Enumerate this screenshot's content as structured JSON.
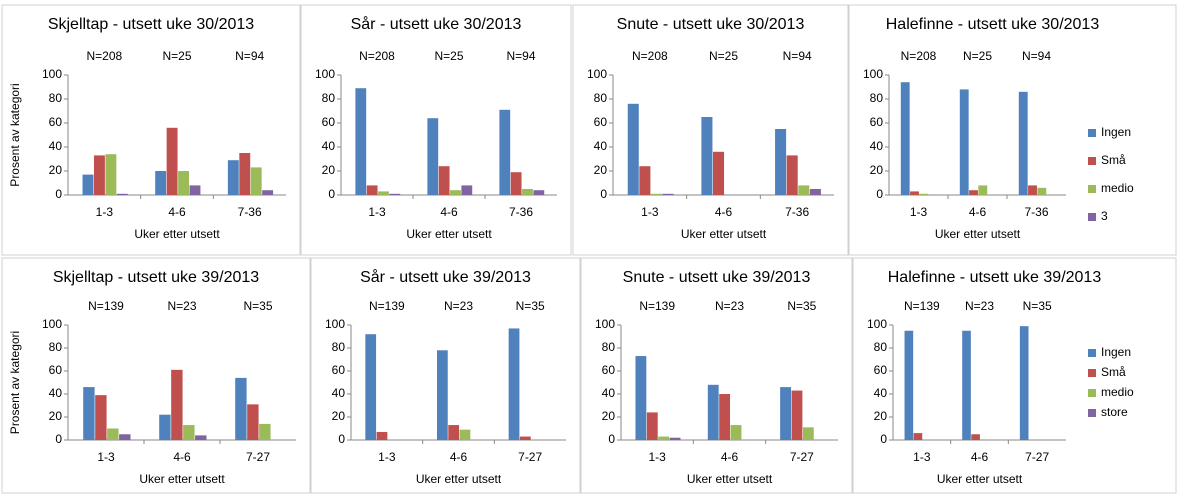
{
  "chart_data": [
    {
      "type": "bar",
      "title": "Skjelltap - utsett uke 30/2013",
      "y_label": "Prosent av kategori",
      "x_label": "Uker etter utsett",
      "annotations": [
        "N=208",
        "N=25",
        "N=94"
      ],
      "categories": [
        "1-3",
        "4-6",
        "7-36"
      ],
      "ylim": [
        0,
        100
      ],
      "yticks": [
        0,
        20,
        40,
        60,
        80,
        100
      ],
      "legend": false,
      "series": [
        {
          "name": "Ingen",
          "color": "#4f81bd",
          "values": [
            17,
            20,
            29
          ]
        },
        {
          "name": "Små",
          "color": "#c0504d",
          "values": [
            33,
            56,
            35
          ]
        },
        {
          "name": "medio",
          "color": "#9bbb59",
          "values": [
            34,
            20,
            23
          ]
        },
        {
          "name": "3",
          "color": "#8064a2",
          "values": [
            1,
            8,
            4
          ]
        }
      ]
    },
    {
      "type": "bar",
      "title": "Sår - utsett uke 30/2013",
      "x_label": "Uker etter utsett",
      "annotations": [
        "N=208",
        "N=25",
        "N=94"
      ],
      "categories": [
        "1-3",
        "4-6",
        "7-36"
      ],
      "ylim": [
        0,
        100
      ],
      "yticks": [
        0,
        20,
        40,
        60,
        80,
        100
      ],
      "legend": false,
      "series": [
        {
          "name": "Ingen",
          "color": "#4f81bd",
          "values": [
            89,
            64,
            71
          ]
        },
        {
          "name": "Små",
          "color": "#c0504d",
          "values": [
            8,
            24,
            19
          ]
        },
        {
          "name": "medio",
          "color": "#9bbb59",
          "values": [
            3,
            4,
            5
          ]
        },
        {
          "name": "3",
          "color": "#8064a2",
          "values": [
            1,
            8,
            4
          ]
        }
      ]
    },
    {
      "type": "bar",
      "title": "Snute - utsett uke 30/2013",
      "x_label": "Uker etter utsett",
      "annotations": [
        "N=208",
        "N=25",
        "N=94"
      ],
      "categories": [
        "1-3",
        "4-6",
        "7-36"
      ],
      "ylim": [
        0,
        100
      ],
      "yticks": [
        0,
        20,
        40,
        60,
        80,
        100
      ],
      "legend": false,
      "series": [
        {
          "name": "Ingen",
          "color": "#4f81bd",
          "values": [
            76,
            65,
            55
          ]
        },
        {
          "name": "Små",
          "color": "#c0504d",
          "values": [
            24,
            36,
            33
          ]
        },
        {
          "name": "medio",
          "color": "#9bbb59",
          "values": [
            1,
            0,
            8
          ]
        },
        {
          "name": "3",
          "color": "#8064a2",
          "values": [
            1,
            0,
            5
          ]
        }
      ]
    },
    {
      "type": "bar",
      "title": "Halefinne - utsett uke 30/2013",
      "x_label": "Uker etter utsett",
      "annotations": [
        "N=208",
        "N=25",
        "N=94"
      ],
      "categories": [
        "1-3",
        "4-6",
        "7-36"
      ],
      "ylim": [
        0,
        100
      ],
      "yticks": [
        0,
        20,
        40,
        60,
        80,
        100
      ],
      "legend": true,
      "series": [
        {
          "name": "Ingen",
          "color": "#4f81bd",
          "values": [
            94,
            88,
            86
          ]
        },
        {
          "name": "Små",
          "color": "#c0504d",
          "values": [
            3,
            4,
            8
          ]
        },
        {
          "name": "medio",
          "color": "#9bbb59",
          "values": [
            1,
            8,
            6
          ]
        },
        {
          "name": "3",
          "color": "#8064a2",
          "values": [
            0,
            0,
            0
          ]
        }
      ]
    },
    {
      "type": "bar",
      "title": "Skjelltap - utsett uke 39/2013",
      "y_label": "Prosent av kategori",
      "x_label": "Uker etter utsett",
      "annotations": [
        "N=139",
        "N=23",
        "N=35"
      ],
      "categories": [
        "1-3",
        "4-6",
        "7-27"
      ],
      "ylim": [
        0,
        100
      ],
      "yticks": [
        0,
        20,
        40,
        60,
        80,
        100
      ],
      "legend": false,
      "series": [
        {
          "name": "Ingen",
          "color": "#4f81bd",
          "values": [
            46,
            22,
            54
          ]
        },
        {
          "name": "Små",
          "color": "#c0504d",
          "values": [
            39,
            61,
            31
          ]
        },
        {
          "name": "medio",
          "color": "#9bbb59",
          "values": [
            10,
            13,
            14
          ]
        },
        {
          "name": "store",
          "color": "#8064a2",
          "values": [
            5,
            4,
            0
          ]
        }
      ]
    },
    {
      "type": "bar",
      "title": "Sår - utsett uke 39/2013",
      "x_label": "Uker etter utsett",
      "annotations": [
        "N=139",
        "N=23",
        "N=35"
      ],
      "categories": [
        "1-3",
        "4-6",
        "7-27"
      ],
      "ylim": [
        0,
        100
      ],
      "yticks": [
        0,
        20,
        40,
        60,
        80,
        100
      ],
      "legend": false,
      "series": [
        {
          "name": "Ingen",
          "color": "#4f81bd",
          "values": [
            92,
            78,
            97
          ]
        },
        {
          "name": "Små",
          "color": "#c0504d",
          "values": [
            7,
            13,
            3
          ]
        },
        {
          "name": "medio",
          "color": "#9bbb59",
          "values": [
            0,
            9,
            0
          ]
        },
        {
          "name": "store",
          "color": "#8064a2",
          "values": [
            0,
            0,
            0
          ]
        }
      ]
    },
    {
      "type": "bar",
      "title": "Snute - utsett uke 39/2013",
      "x_label": "Uker etter utsett",
      "annotations": [
        "N=139",
        "N=23",
        "N=35"
      ],
      "categories": [
        "1-3",
        "4-6",
        "7-27"
      ],
      "ylim": [
        0,
        100
      ],
      "yticks": [
        0,
        20,
        40,
        60,
        80,
        100
      ],
      "legend": false,
      "series": [
        {
          "name": "Ingen",
          "color": "#4f81bd",
          "values": [
            73,
            48,
            46
          ]
        },
        {
          "name": "Små",
          "color": "#c0504d",
          "values": [
            24,
            40,
            43
          ]
        },
        {
          "name": "medio",
          "color": "#9bbb59",
          "values": [
            3,
            13,
            11
          ]
        },
        {
          "name": "store",
          "color": "#8064a2",
          "values": [
            2,
            0,
            0
          ]
        }
      ]
    },
    {
      "type": "bar",
      "title": "Halefinne - utsett uke 39/2013",
      "x_label": "Uker etter utsett",
      "annotations": [
        "N=139",
        "N=23",
        "N=35"
      ],
      "categories": [
        "1-3",
        "4-6",
        "7-27"
      ],
      "ylim": [
        0,
        100
      ],
      "yticks": [
        0,
        20,
        40,
        60,
        80,
        100
      ],
      "legend": true,
      "series": [
        {
          "name": "Ingen",
          "color": "#4f81bd",
          "values": [
            95,
            95,
            99
          ]
        },
        {
          "name": "Små",
          "color": "#c0504d",
          "values": [
            6,
            5,
            0
          ]
        },
        {
          "name": "medio",
          "color": "#9bbb59",
          "values": [
            0,
            0,
            0
          ]
        },
        {
          "name": "store",
          "color": "#8064a2",
          "values": [
            0,
            0,
            0
          ]
        }
      ]
    }
  ]
}
